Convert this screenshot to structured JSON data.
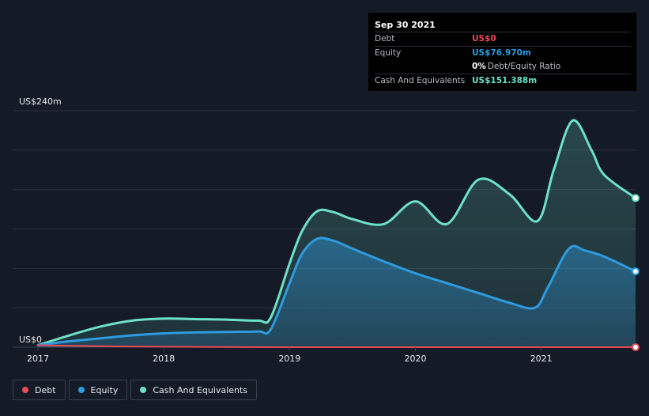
{
  "tooltip": {
    "date": "Sep 30 2021",
    "rows": [
      {
        "label": "Debt",
        "value": "US$0",
        "color": "#e84a56"
      },
      {
        "label": "Equity",
        "value": "US$76.970m",
        "color": "#2e9be0"
      },
      {
        "label": "",
        "value": "0%",
        "sub": "Debt/Equity Ratio",
        "color": "#ffffff"
      },
      {
        "label": "Cash And Equivalents",
        "value": "US$151.388m",
        "color": "#6de0c8"
      }
    ]
  },
  "legend": [
    {
      "label": "Debt",
      "color": "#e84a56"
    },
    {
      "label": "Equity",
      "color": "#2e9be0"
    },
    {
      "label": "Cash And Equivalents",
      "color": "#6de0c8"
    }
  ],
  "chart_data": {
    "type": "area",
    "x_tick_labels": [
      "2017",
      "2018",
      "2019",
      "2020",
      "2021"
    ],
    "x_ticks": [
      2017,
      2018,
      2019,
      2020,
      2021
    ],
    "xlim": [
      2017,
      2021.75
    ],
    "ylim": [
      0,
      240
    ],
    "y_tick_labels": [
      "US$0",
      "US$240m"
    ],
    "y_ticks": [
      0,
      240
    ],
    "grid": true,
    "series": [
      {
        "name": "Debt",
        "color": "#e84a56",
        "x": [
          2017,
          2017.5,
          2018,
          2019,
          2020,
          2021,
          2021.75
        ],
        "y": [
          2,
          1,
          0.5,
          0,
          0,
          0,
          0
        ]
      },
      {
        "name": "Equity",
        "color": "#2e9be0",
        "x": [
          2017,
          2017.25,
          2017.5,
          2017.75,
          2018,
          2018.25,
          2018.5,
          2018.75,
          2018.85,
          2019,
          2019.1,
          2019.22,
          2019.35,
          2019.5,
          2019.75,
          2020,
          2020.25,
          2020.5,
          2020.75,
          2020.95,
          2021.05,
          2021.22,
          2021.35,
          2021.5,
          2021.75
        ],
        "y": [
          2,
          6,
          9,
          12,
          14,
          15,
          15.5,
          16,
          18,
          65,
          95,
          110,
          108,
          100,
          87,
          75,
          65,
          55,
          45,
          40,
          60,
          100,
          98,
          92,
          77
        ]
      },
      {
        "name": "Cash And Equivalents",
        "color": "#6de0c8",
        "x": [
          2017,
          2017.25,
          2017.5,
          2017.75,
          2018,
          2018.25,
          2018.5,
          2018.75,
          2018.85,
          2019,
          2019.1,
          2019.22,
          2019.35,
          2019.5,
          2019.75,
          2020,
          2020.25,
          2020.5,
          2020.75,
          2020.97,
          2021.1,
          2021.25,
          2021.4,
          2021.5,
          2021.75
        ],
        "y": [
          2,
          12,
          21,
          27,
          29,
          28.5,
          28,
          27,
          30,
          85,
          118,
          138,
          137,
          130,
          125,
          148,
          125,
          170,
          155,
          128,
          180,
          230,
          200,
          175,
          151.388
        ]
      }
    ]
  }
}
